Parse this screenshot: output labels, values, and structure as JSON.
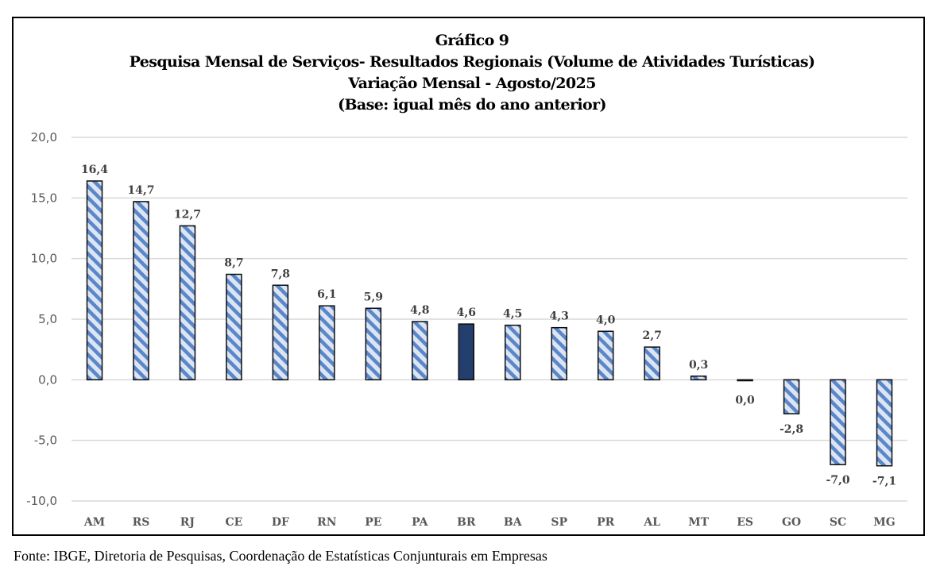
{
  "chart_data": {
    "type": "bar",
    "title": "Gráfico 9",
    "subtitle_lines": [
      "Pesquisa Mensal de Serviços- Resultados Regionais (Volume de Atividades Turísticas)",
      "Variação Mensal - Agosto/2025",
      "(Base: igual mês do ano anterior)"
    ],
    "xlabel": "",
    "ylabel": "",
    "categories": [
      "AM",
      "RS",
      "RJ",
      "CE",
      "DF",
      "RN",
      "PE",
      "PA",
      "BR",
      "BA",
      "SP",
      "PR",
      "AL",
      "MT",
      "ES",
      "GO",
      "SC",
      "MG"
    ],
    "values": [
      16.4,
      14.7,
      12.7,
      8.7,
      7.8,
      6.1,
      5.9,
      4.8,
      4.6,
      4.5,
      4.3,
      4.0,
      2.7,
      0.3,
      0.0,
      -2.8,
      -7.0,
      -7.1
    ],
    "data_labels": [
      "16,4",
      "14,7",
      "12,7",
      "8,7",
      "7,8",
      "6,1",
      "5,9",
      "4,8",
      "4,6",
      "4,5",
      "4,3",
      "4,0",
      "2,7",
      "0,3",
      "0,0",
      "-2,8",
      "-7,0",
      "-7,1"
    ],
    "highlight_category": "BR",
    "ylim": [
      -10,
      20
    ],
    "yticks": [
      20,
      15,
      10,
      5,
      0,
      -5,
      -10
    ],
    "ytick_labels": [
      "20,0",
      "15,0",
      "10,0",
      "5,0",
      "0,0",
      "-5,0",
      "-10,0"
    ],
    "grid": true,
    "legend": "none",
    "colors": {
      "stripe_background": "#dbe5f3",
      "stripe_foreground": "#5b86c8",
      "highlight_fill": "#233f6e",
      "bar_border": "#0d0d0d",
      "grid": "#d9d9d9"
    }
  },
  "source": "Fonte: IBGE, Diretoria de Pesquisas, Coordenação de Estatísticas Conjunturais em Empresas"
}
